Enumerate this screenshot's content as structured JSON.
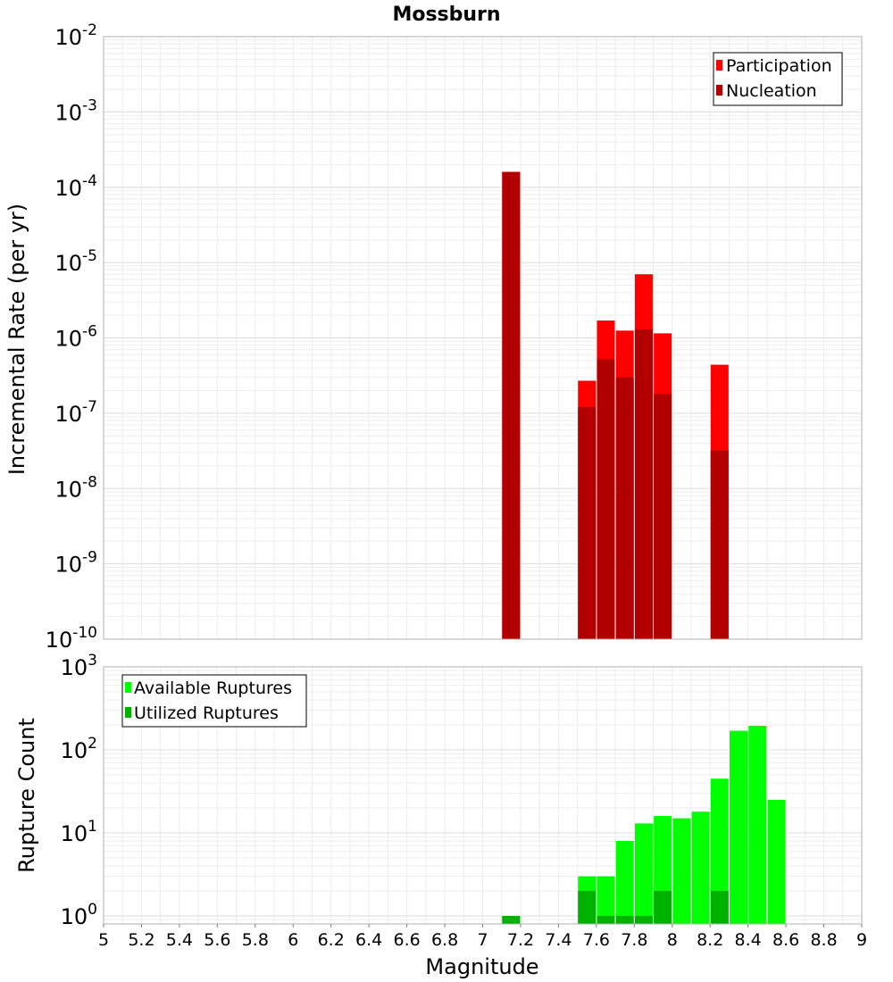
{
  "chart_data": [
    {
      "type": "bar",
      "title": "Mossburn",
      "xlabel": "",
      "ylabel": "Incremental Rate (per yr)",
      "yscale": "log",
      "ylim": [
        1e-10,
        0.01
      ],
      "ytick_labels": [
        {
          "base": "10",
          "exp": "-10"
        },
        {
          "base": "10",
          "exp": "-9"
        },
        {
          "base": "10",
          "exp": "-8"
        },
        {
          "base": "10",
          "exp": "-7"
        },
        {
          "base": "10",
          "exp": "-6"
        },
        {
          "base": "10",
          "exp": "-5"
        },
        {
          "base": "10",
          "exp": "-4"
        },
        {
          "base": "10",
          "exp": "-3"
        },
        {
          "base": "10",
          "exp": "-2"
        }
      ],
      "xlim": [
        5,
        9
      ],
      "grid": true,
      "legend_position": "top-right",
      "x": [
        7.15,
        7.55,
        7.65,
        7.75,
        7.85,
        7.95,
        8.25
      ],
      "series": [
        {
          "name": "Participation",
          "color": "#ff0000",
          "values": [
            0.00016,
            2.7e-07,
            1.7e-06,
            1.25e-06,
            7e-06,
            1.15e-06,
            4.4e-07
          ]
        },
        {
          "name": "Nucleation",
          "color": "#b20000",
          "values": [
            0.00016,
            1.2e-07,
            5.2e-07,
            3e-07,
            1.3e-06,
            1.8e-07,
            3.2e-08
          ]
        }
      ]
    },
    {
      "type": "bar",
      "title": "",
      "xlabel": "Magnitude",
      "ylabel": "Rupture Count",
      "yscale": "log",
      "ylim": [
        0.8,
        1000
      ],
      "ytick_labels": [
        {
          "base": "10",
          "exp": "0"
        },
        {
          "base": "10",
          "exp": "1"
        },
        {
          "base": "10",
          "exp": "2"
        },
        {
          "base": "10",
          "exp": "3"
        }
      ],
      "xlim": [
        5,
        9
      ],
      "xtick_labels": [
        "5",
        "5.2",
        "5.4",
        "5.6",
        "5.8",
        "6",
        "6.2",
        "6.4",
        "6.6",
        "6.8",
        "7",
        "7.2",
        "7.4",
        "7.6",
        "7.8",
        "8",
        "8.2",
        "8.4",
        "8.6",
        "8.8",
        "9"
      ],
      "grid": true,
      "legend_position": "top-left",
      "series": [
        {
          "name": "Available Ruptures",
          "color": "#00ff00",
          "x": [
            7.15,
            7.55,
            7.65,
            7.75,
            7.85,
            7.95,
            8.05,
            8.15,
            8.25,
            8.35,
            8.45,
            8.55
          ],
          "values": [
            1,
            3,
            3,
            8,
            13,
            16,
            15,
            18,
            45,
            170,
            195,
            25
          ]
        },
        {
          "name": "Utilized Ruptures",
          "color": "#00b200",
          "x": [
            7.15,
            7.55,
            7.65,
            7.75,
            7.85,
            7.95,
            8.25
          ],
          "values": [
            1,
            2,
            1,
            1,
            1,
            2,
            2
          ]
        }
      ]
    }
  ]
}
